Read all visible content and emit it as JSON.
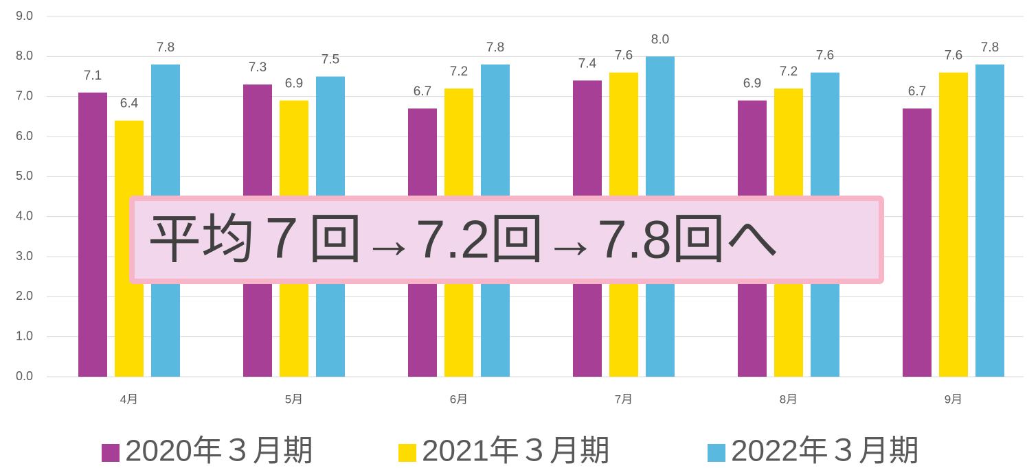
{
  "chart_data": {
    "type": "bar",
    "categories": [
      "4月",
      "5月",
      "6月",
      "7月",
      "8月",
      "9月"
    ],
    "series": [
      {
        "name": "2020年３月期",
        "color": "#a83f96",
        "values": [
          7.1,
          7.3,
          6.7,
          7.4,
          6.9,
          6.7
        ],
        "value_labels": [
          "7.1",
          "7.3",
          "6.7",
          "7.4",
          "6.9",
          "6.7"
        ]
      },
      {
        "name": "2021年３月期",
        "color": "#ffdc00",
        "values": [
          6.4,
          6.9,
          7.2,
          7.6,
          7.2,
          7.6
        ],
        "value_labels": [
          "6.4",
          "6.9",
          "7.2",
          "7.6",
          "7.2",
          "7.6"
        ]
      },
      {
        "name": "2022年３月期",
        "color": "#59b9df",
        "values": [
          7.8,
          7.5,
          7.8,
          8.0,
          7.6,
          7.8
        ],
        "value_labels": [
          "7.8",
          "7.5",
          "7.8",
          "8.0",
          "7.6",
          "7.8"
        ]
      }
    ],
    "ylim": [
      0,
      9
    ],
    "yticks": [
      {
        "value": 0,
        "label": "0.0"
      },
      {
        "value": 1,
        "label": "1.0"
      },
      {
        "value": 2,
        "label": "2.0"
      },
      {
        "value": 3,
        "label": "3.0"
      },
      {
        "value": 4,
        "label": "4.0"
      },
      {
        "value": 5,
        "label": "5.0"
      },
      {
        "value": 6,
        "label": "6.0"
      },
      {
        "value": 7,
        "label": "7.0"
      },
      {
        "value": 8,
        "label": "8.0"
      },
      {
        "value": 9,
        "label": "9.0"
      }
    ],
    "grid": true,
    "legend": "bottom",
    "annotation": "平均７回→7.2回→7.8回へ"
  }
}
